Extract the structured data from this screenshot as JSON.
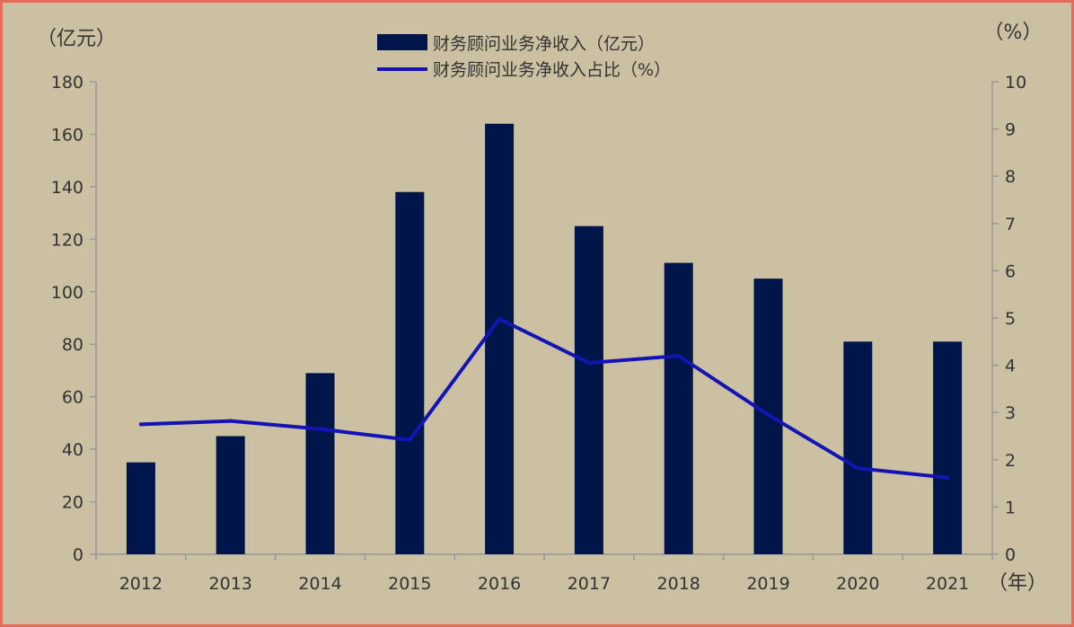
{
  "colors": {
    "background": "#cbc0a1",
    "border": "#e56b5a",
    "bar": "#00164a",
    "line": "#1414b4",
    "axis": "#999999",
    "text": "#333333"
  },
  "chart_data": {
    "type": "bar",
    "categories": [
      "2012",
      "2013",
      "2014",
      "2015",
      "2016",
      "2017",
      "2018",
      "2019",
      "2020",
      "2021"
    ],
    "series": [
      {
        "name": "财务顾问业务净收入（亿元）",
        "type": "bar",
        "axis": "left",
        "values": [
          35,
          45,
          69,
          138,
          164,
          125,
          111,
          105,
          81,
          81
        ]
      },
      {
        "name": "财务顾问业务净收入占比（%）",
        "type": "line",
        "axis": "right",
        "values": [
          2.75,
          2.82,
          2.65,
          2.42,
          4.98,
          4.05,
          4.2,
          2.95,
          1.82,
          1.62
        ]
      }
    ],
    "y_left": {
      "label": "（亿元）",
      "ylim": [
        0,
        180
      ],
      "ticks": [
        "0",
        "20",
        "40",
        "60",
        "80",
        "100",
        "120",
        "140",
        "160",
        "180"
      ]
    },
    "y_right": {
      "label": "（%）",
      "ylim": [
        0,
        10
      ],
      "ticks": [
        "0",
        "1",
        "2",
        "3",
        "4",
        "5",
        "6",
        "7",
        "8",
        "9",
        "10"
      ]
    },
    "x_unit_label": "（年）",
    "grid": false,
    "legend_position": "top-center"
  }
}
